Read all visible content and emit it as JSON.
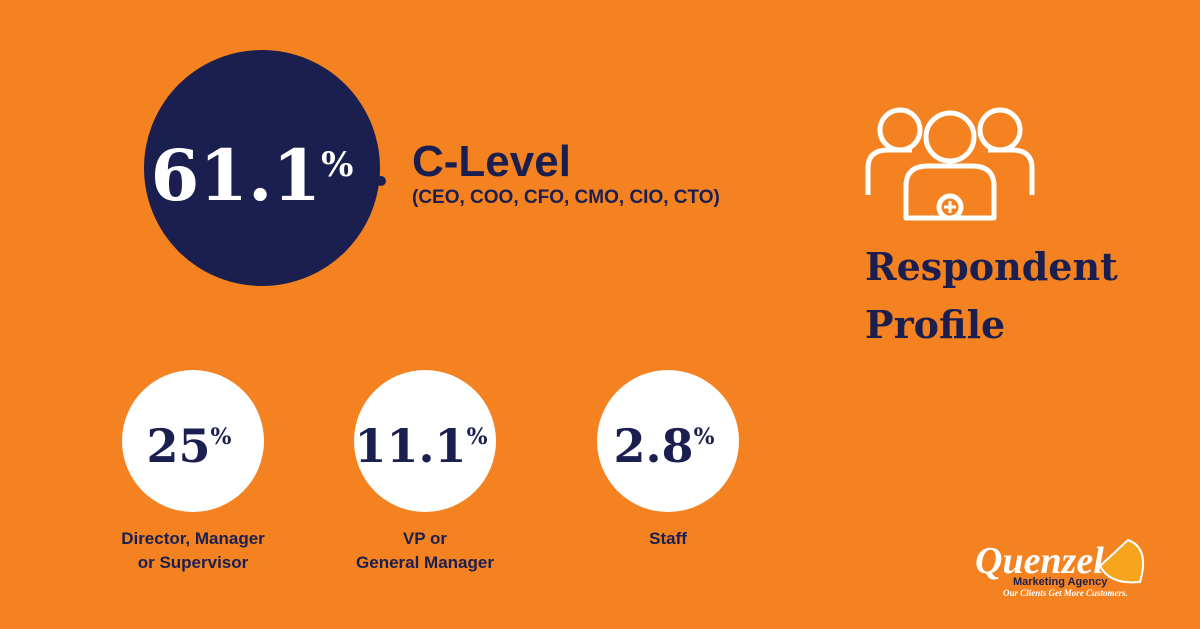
{
  "hero": {
    "value": "61.1",
    "unit": "%",
    "title": "C-Level",
    "subtitle": "(CEO, COO, CFO, CMO, CIO, CTO)"
  },
  "stats": [
    {
      "value": "25",
      "unit": "%",
      "label_lines": [
        "Director, Manager",
        "or Supervisor"
      ]
    },
    {
      "value": "11.1",
      "unit": "%",
      "label_lines": [
        "VP or",
        "General Manager"
      ]
    },
    {
      "value": "2.8",
      "unit": "%",
      "label_lines": [
        "Staff"
      ]
    }
  ],
  "heading": [
    "Respondent",
    "Profile"
  ],
  "logo": {
    "name": "Quenzel",
    "tagline": "Marketing Agency",
    "slogan": "Our Clients Get More Customers."
  }
}
